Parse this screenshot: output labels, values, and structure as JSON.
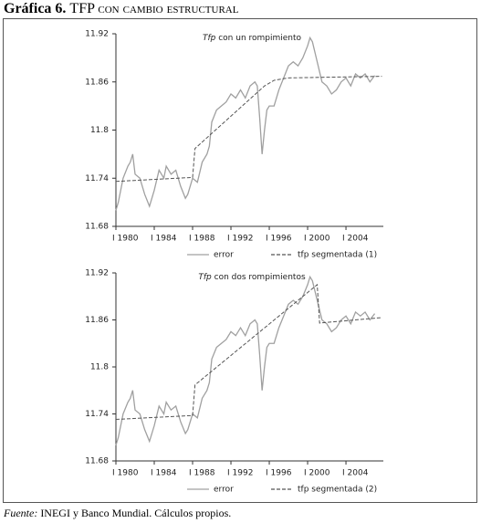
{
  "title": {
    "number": "Gráfica 6.",
    "text": "TFP con cambio estructural"
  },
  "source": {
    "label": "Fuente:",
    "text": "INEGI y Banco Mundial. Cálculos propios."
  },
  "chart_data": [
    {
      "type": "line",
      "title_prefix": "Tfp",
      "title": "con un rompimiento",
      "xlim": [
        1980,
        2007.9
      ],
      "ylim": [
        11.68,
        11.92
      ],
      "xticks": [
        {
          "value": 1980,
          "label": "I 1980"
        },
        {
          "value": 1984,
          "label": "I 1984"
        },
        {
          "value": 1988,
          "label": "I 1988"
        },
        {
          "value": 1992,
          "label": "I 1992"
        },
        {
          "value": 1996,
          "label": "I 1996"
        },
        {
          "value": 2000,
          "label": "I 2000"
        },
        {
          "value": 2004,
          "label": "I 2004"
        }
      ],
      "yticks": [
        11.68,
        11.74,
        11.8,
        11.86,
        11.92
      ],
      "series": [
        {
          "name": "error",
          "color": "#a0a0a0",
          "dash": false,
          "x": [
            1980,
            1980.25,
            1980.75,
            1981.25,
            1981.5,
            1981.75,
            1982,
            1982.5,
            1983,
            1983.5,
            1984,
            1984.5,
            1985,
            1985.25,
            1985.75,
            1986.25,
            1986.75,
            1987.25,
            1987.5,
            1988,
            1988.5,
            1989,
            1989.5,
            1989.75,
            1990,
            1990.5,
            1991,
            1991.5,
            1992,
            1992.5,
            1993,
            1993.5,
            1994,
            1994.5,
            1994.75,
            1995,
            1995.25,
            1995.5,
            1995.75,
            1996,
            1996.5,
            1997,
            1997.5,
            1998,
            1998.5,
            1999,
            1999.5,
            2000,
            2000.25,
            2000.5,
            2001,
            2001.5,
            2002,
            2002.5,
            2003,
            2003.5,
            2004,
            2004.5,
            2005,
            2005.5,
            2006,
            2006.5,
            2007
          ],
          "values": [
            11.7,
            11.71,
            11.74,
            11.755,
            11.76,
            11.77,
            11.745,
            11.74,
            11.72,
            11.705,
            11.725,
            11.75,
            11.74,
            11.755,
            11.745,
            11.75,
            11.73,
            11.715,
            11.72,
            11.74,
            11.735,
            11.76,
            11.77,
            11.78,
            11.81,
            11.825,
            11.83,
            11.835,
            11.845,
            11.84,
            11.85,
            11.84,
            11.855,
            11.86,
            11.855,
            11.815,
            11.77,
            11.8,
            11.825,
            11.83,
            11.83,
            11.85,
            11.865,
            11.88,
            11.885,
            11.88,
            11.89,
            11.905,
            11.915,
            11.91,
            11.885,
            11.86,
            11.855,
            11.845,
            11.85,
            11.86,
            11.865,
            11.855,
            11.87,
            11.865,
            11.87,
            11.86,
            11.868
          ]
        },
        {
          "name": "tfp segmentada (1)",
          "color": "#555555",
          "dash": true,
          "x": [
            1980,
            1988,
            1988.25,
            1995.5,
            1996.5,
            1998,
            2007.75
          ],
          "values": [
            11.736,
            11.741,
            11.777,
            11.855,
            11.862,
            11.865,
            11.867
          ]
        }
      ]
    },
    {
      "type": "line",
      "title_prefix": "Tfp",
      "title": "con dos rompimientos",
      "xlim": [
        1980,
        2007.9
      ],
      "ylim": [
        11.68,
        11.92
      ],
      "xticks": [
        {
          "value": 1980,
          "label": "I 1980"
        },
        {
          "value": 1984,
          "label": "I 1984"
        },
        {
          "value": 1988,
          "label": "I 1988"
        },
        {
          "value": 1992,
          "label": "I 1992"
        },
        {
          "value": 1996,
          "label": "I 1996"
        },
        {
          "value": 2000,
          "label": "I 2000"
        },
        {
          "value": 2004,
          "label": "I 2004"
        }
      ],
      "yticks": [
        11.68,
        11.74,
        11.8,
        11.86,
        11.92
      ],
      "series": [
        {
          "name": "error",
          "color": "#a0a0a0",
          "dash": false,
          "x": [
            1980,
            1980.25,
            1980.75,
            1981.25,
            1981.5,
            1981.75,
            1982,
            1982.5,
            1983,
            1983.5,
            1984,
            1984.5,
            1985,
            1985.25,
            1985.75,
            1986.25,
            1986.75,
            1987.25,
            1987.5,
            1988,
            1988.5,
            1989,
            1989.5,
            1989.75,
            1990,
            1990.5,
            1991,
            1991.5,
            1992,
            1992.5,
            1993,
            1993.5,
            1994,
            1994.5,
            1994.75,
            1995,
            1995.25,
            1995.5,
            1995.75,
            1996,
            1996.5,
            1997,
            1997.5,
            1998,
            1998.5,
            1999,
            1999.5,
            2000,
            2000.25,
            2000.5,
            2001,
            2001.5,
            2002,
            2002.5,
            2003,
            2003.5,
            2004,
            2004.5,
            2005,
            2005.5,
            2006,
            2006.5,
            2007
          ],
          "values": [
            11.7,
            11.71,
            11.74,
            11.755,
            11.76,
            11.77,
            11.745,
            11.74,
            11.72,
            11.705,
            11.725,
            11.75,
            11.74,
            11.755,
            11.745,
            11.75,
            11.73,
            11.715,
            11.72,
            11.74,
            11.735,
            11.76,
            11.77,
            11.78,
            11.81,
            11.825,
            11.83,
            11.835,
            11.845,
            11.84,
            11.85,
            11.84,
            11.855,
            11.86,
            11.855,
            11.815,
            11.77,
            11.8,
            11.825,
            11.83,
            11.83,
            11.85,
            11.865,
            11.88,
            11.885,
            11.88,
            11.89,
            11.905,
            11.915,
            11.91,
            11.885,
            11.86,
            11.855,
            11.845,
            11.85,
            11.86,
            11.865,
            11.855,
            11.87,
            11.865,
            11.87,
            11.86,
            11.868
          ]
        },
        {
          "name": "tfp segmentada (2)",
          "color": "#555555",
          "dash": true,
          "x": [
            1980,
            1988,
            1988.25,
            2001,
            2001.25,
            2007.75
          ],
          "values": [
            11.733,
            11.738,
            11.777,
            11.905,
            11.856,
            11.863
          ]
        }
      ]
    }
  ]
}
